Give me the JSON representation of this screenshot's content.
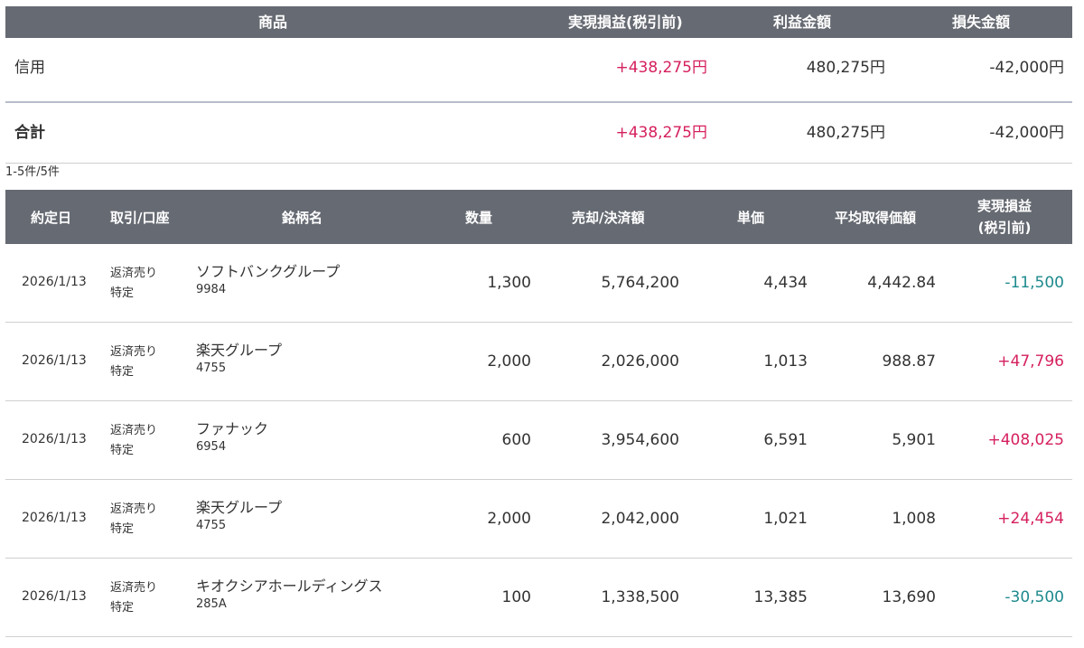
{
  "summary": {
    "headers": {
      "product": "商品",
      "realized": "実現損益(税引前)",
      "profit": "利益金額",
      "loss": "損失金額"
    },
    "credit": {
      "label": "信用",
      "realized": "+438,275円",
      "profit": "480,275円",
      "loss": "-42,000円"
    },
    "total": {
      "label": "合計",
      "realized": "+438,275円",
      "profit": "480,275円",
      "loss": "-42,000円"
    }
  },
  "count_text": "1-5件/5件",
  "detail": {
    "headers": {
      "date": "約定日",
      "type": "取引/口座",
      "name": "銘柄名",
      "qty": "数量",
      "amount": "売却/決済額",
      "unit": "単価",
      "avg": "平均取得価額",
      "pl_line1": "実現損益",
      "pl_line2": "(税引前)"
    },
    "rows": [
      {
        "date": "2026/1/13",
        "type1": "返済売り",
        "type2": "特定",
        "name": "ソフトバンクグループ",
        "code": "9984",
        "qty": "1,300",
        "amount": "5,764,200",
        "unit": "4,434",
        "avg": "4,442.84",
        "pl": "-11,500",
        "pl_sign": "minus"
      },
      {
        "date": "2026/1/13",
        "type1": "返済売り",
        "type2": "特定",
        "name": "楽天グループ",
        "code": "4755",
        "qty": "2,000",
        "amount": "2,026,000",
        "unit": "1,013",
        "avg": "988.87",
        "pl": "+47,796",
        "pl_sign": "plus"
      },
      {
        "date": "2026/1/13",
        "type1": "返済売り",
        "type2": "特定",
        "name": "ファナック",
        "code": "6954",
        "qty": "600",
        "amount": "3,954,600",
        "unit": "6,591",
        "avg": "5,901",
        "pl": "+408,025",
        "pl_sign": "plus"
      },
      {
        "date": "2026/1/13",
        "type1": "返済売り",
        "type2": "特定",
        "name": "楽天グループ",
        "code": "4755",
        "qty": "2,000",
        "amount": "2,042,000",
        "unit": "1,021",
        "avg": "1,008",
        "pl": "+24,454",
        "pl_sign": "plus"
      },
      {
        "date": "2026/1/13",
        "type1": "返済売り",
        "type2": "特定",
        "name": "キオクシアホールディングス",
        "code": "285A",
        "qty": "100",
        "amount": "1,338,500",
        "unit": "13,385",
        "avg": "13,690",
        "pl": "-30,500",
        "pl_sign": "minus"
      }
    ]
  },
  "colors": {
    "header_bg": "#666a72",
    "positive": "#d5205f",
    "negative": "#1e8a8e"
  }
}
